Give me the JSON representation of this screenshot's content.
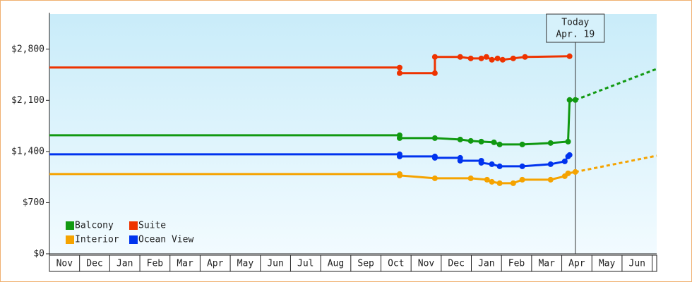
{
  "chart_data": {
    "type": "line",
    "xlim": [
      0,
      20.15
    ],
    "ylim": [
      0,
      3280
    ],
    "yticks": [
      {
        "value": 0,
        "label": "$0"
      },
      {
        "value": 700,
        "label": "$700"
      },
      {
        "value": 1400,
        "label": "$1,400"
      },
      {
        "value": 2100,
        "label": "$2,100"
      },
      {
        "value": 2800,
        "label": "$2,800"
      }
    ],
    "xticks": [
      {
        "value": 0.5,
        "label": "Nov"
      },
      {
        "value": 1.5,
        "label": "Dec"
      },
      {
        "value": 2.5,
        "label": "Jan"
      },
      {
        "value": 3.5,
        "label": "Feb"
      },
      {
        "value": 4.5,
        "label": "Mar"
      },
      {
        "value": 5.5,
        "label": "Apr"
      },
      {
        "value": 6.5,
        "label": "May"
      },
      {
        "value": 7.5,
        "label": "Jun"
      },
      {
        "value": 8.5,
        "label": "Jul"
      },
      {
        "value": 9.5,
        "label": "Aug"
      },
      {
        "value": 10.5,
        "label": "Sep"
      },
      {
        "value": 11.5,
        "label": "Oct"
      },
      {
        "value": 12.5,
        "label": "Nov"
      },
      {
        "value": 13.5,
        "label": "Dec"
      },
      {
        "value": 14.5,
        "label": "Jan"
      },
      {
        "value": 15.5,
        "label": "Feb"
      },
      {
        "value": 16.5,
        "label": "Mar"
      },
      {
        "value": 17.5,
        "label": "Apr"
      },
      {
        "value": 18.5,
        "label": "May"
      },
      {
        "value": 19.5,
        "label": "Jun"
      }
    ],
    "today": {
      "x": 17.45,
      "label": [
        "Today",
        "Apr. 19"
      ]
    },
    "series": [
      {
        "name": "Balcony",
        "color": "#119911",
        "x": [
          0,
          11.62,
          11.62,
          12.79,
          13.63,
          13.98,
          14.33,
          14.75,
          14.94,
          15.69,
          16.63,
          17.21,
          17.26,
          17.45
        ],
        "values": [
          1622,
          1622,
          1583,
          1583,
          1564,
          1545,
          1535,
          1525,
          1496,
          1496,
          1516,
          1535,
          2105,
          2105
        ],
        "projection": {
          "x": [
            17.45,
            20.15
          ],
          "values": [
            2105,
            2530
          ]
        }
      },
      {
        "name": "Suite",
        "color": "#ee3300",
        "x": [
          0,
          11.62,
          11.62,
          12.79,
          12.79,
          13.63,
          13.98,
          14.33,
          14.5,
          14.68,
          14.87,
          15.04,
          15.39,
          15.78,
          17.26
        ],
        "values": [
          2549,
          2549,
          2472,
          2472,
          2694,
          2694,
          2674,
          2674,
          2694,
          2655,
          2674,
          2655,
          2674,
          2694,
          2703
        ]
      },
      {
        "name": "Interior",
        "color": "#f5a300",
        "x": [
          0,
          11.62,
          11.62,
          12.79,
          13.98,
          14.52,
          14.68,
          14.94,
          15.39,
          15.69,
          16.63,
          17.1,
          17.21,
          17.45
        ],
        "values": [
          1091,
          1091,
          1072,
          1033,
          1033,
          1014,
          985,
          966,
          966,
          1014,
          1014,
          1062,
          1101,
          1120
        ],
        "projection": {
          "x": [
            17.45,
            20.15
          ],
          "values": [
            1120,
            1342
          ]
        }
      },
      {
        "name": "Ocean View",
        "color": "#0033ee",
        "x": [
          0,
          11.62,
          11.62,
          12.79,
          12.79,
          13.63,
          13.63,
          14.33,
          14.33,
          14.68,
          14.94,
          15.69,
          16.63,
          17.1,
          17.21,
          17.26
        ],
        "values": [
          1361,
          1361,
          1332,
          1332,
          1313,
          1313,
          1274,
          1274,
          1245,
          1226,
          1197,
          1197,
          1226,
          1265,
          1332,
          1352
        ]
      }
    ]
  }
}
